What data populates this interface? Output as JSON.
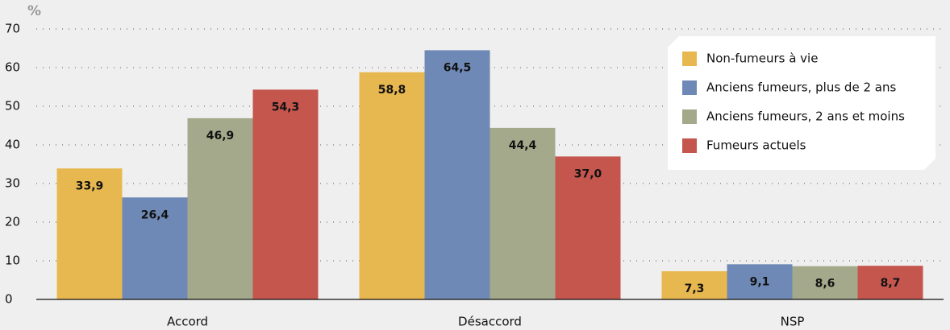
{
  "chart_data": {
    "type": "bar",
    "ylabel": "%",
    "categories": [
      "Accord",
      "Désaccord",
      "NSP"
    ],
    "series": [
      {
        "name": "Non-fumeurs à vie",
        "color": "#e8b850",
        "values": [
          33.9,
          58.8,
          7.3
        ],
        "value_labels": [
          "33,9",
          "58,8",
          "7,3"
        ]
      },
      {
        "name": "Anciens fumeurs, plus de 2 ans",
        "color": "#6f89b6",
        "values": [
          26.4,
          64.5,
          9.1
        ],
        "value_labels": [
          "26,4",
          "64,5",
          "9,1"
        ]
      },
      {
        "name": "Anciens fumeurs, 2 ans et moins",
        "color": "#a5a98b",
        "values": [
          46.9,
          44.4,
          8.6
        ],
        "value_labels": [
          "46,9",
          "44,4",
          "8,6"
        ]
      },
      {
        "name": "Fumeurs actuels",
        "color": "#c4564e",
        "values": [
          54.3,
          37.0,
          8.7
        ],
        "value_labels": [
          "54,3",
          "37,0",
          "8,7"
        ]
      }
    ],
    "ylim": [
      0,
      70
    ],
    "yticks": [
      0,
      10,
      20,
      30,
      40,
      50,
      60,
      70
    ],
    "grid": true,
    "legend": "upper right"
  }
}
